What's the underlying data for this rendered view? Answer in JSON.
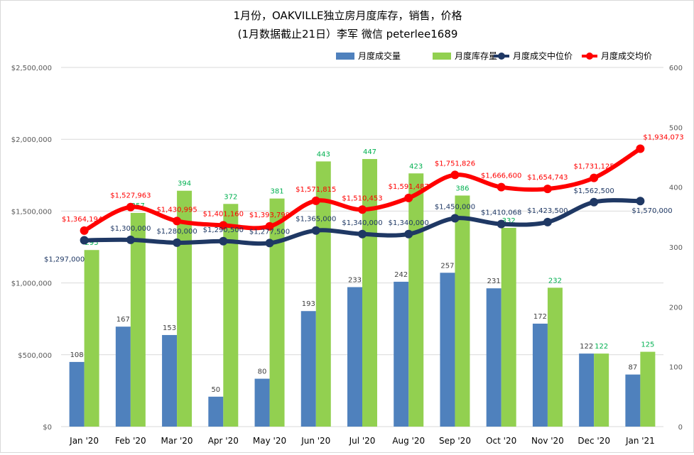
{
  "chart_data": {
    "type": "bar",
    "title": "1月份，OAKVILLE独立房月度库存，销售，价格",
    "subtitle": "(1月数据截止21日）李军 微信 peterlee1689",
    "categories": [
      "Jan '20",
      "Feb '20",
      "Mar '20",
      "Apr '20",
      "May '20",
      "Jun '20",
      "Jul '20",
      "Aug '20",
      "Sep '20",
      "Oct '20",
      "Nov '20",
      "Dec '20",
      "Jan '21"
    ],
    "left_axis": {
      "ylim": [
        0,
        2500000
      ],
      "ticks": [
        "$0",
        "$500,000",
        "$1,000,000",
        "$1,500,000",
        "$2,000,000",
        "$2,500,000"
      ]
    },
    "right_axis": {
      "ylim": [
        0,
        600
      ],
      "ticks": [
        "0",
        "100",
        "200",
        "300",
        "400",
        "500",
        "600"
      ]
    },
    "grid": true,
    "legend_position": "top-right",
    "series": [
      {
        "name": "月度成交量",
        "kind": "bar",
        "axis": "right",
        "color": "#4F81BD",
        "values": [
          108,
          167,
          153,
          50,
          80,
          193,
          233,
          242,
          257,
          231,
          172,
          122,
          87
        ],
        "labels": [
          "108",
          "167",
          "153",
          "50",
          "80",
          "193",
          "233",
          "242",
          "257",
          "231",
          "172",
          "122",
          "87"
        ],
        "label_color": "#404040"
      },
      {
        "name": "月度库存量",
        "kind": "bar",
        "axis": "right",
        "color": "#92D050",
        "values": [
          295,
          357,
          394,
          372,
          381,
          443,
          447,
          423,
          386,
          332,
          232,
          122,
          125
        ],
        "labels": [
          "295",
          "357",
          "394",
          "372",
          "381",
          "443",
          "447",
          "423",
          "386",
          "332",
          "232",
          "122",
          "125"
        ],
        "label_color": "#00B050"
      },
      {
        "name": "月度成交中位价",
        "kind": "line",
        "axis": "left",
        "color": "#1F3864",
        "values": [
          1297000,
          1300000,
          1280000,
          1290500,
          1277500,
          1365000,
          1340000,
          1340000,
          1450000,
          1410068,
          1423500,
          1562500,
          1570000
        ],
        "labels": [
          "$1,297,000",
          "$1,300,000",
          "$1,280,000",
          "$1,290,500",
          "$1,277,500",
          "$1,365,000",
          "$1,340,000",
          "$1,340,000",
          "$1,450,000",
          "$1,410,068",
          "$1,423,500",
          "$1,562,500",
          "$1,570,000"
        ],
        "label_color": "#1F3864"
      },
      {
        "name": "月度成交均价",
        "kind": "line",
        "axis": "left",
        "color": "#FF0000",
        "values": [
          1364194,
          1527963,
          1430995,
          1401160,
          1393799,
          1571815,
          1510453,
          1591487,
          1751826,
          1666600,
          1654743,
          1731125,
          1934073
        ],
        "labels": [
          "$1,364,194",
          "$1,527,963",
          "$1,430,995",
          "$1,401,160",
          "$1,393,799",
          "$1,571,815",
          "$1,510,453",
          "$1,591,487",
          "$1,751,826",
          "$1,666,600",
          "$1,654,743",
          "$1,731,125",
          "$1,934,073"
        ],
        "label_color": "#FF0000"
      }
    ]
  }
}
